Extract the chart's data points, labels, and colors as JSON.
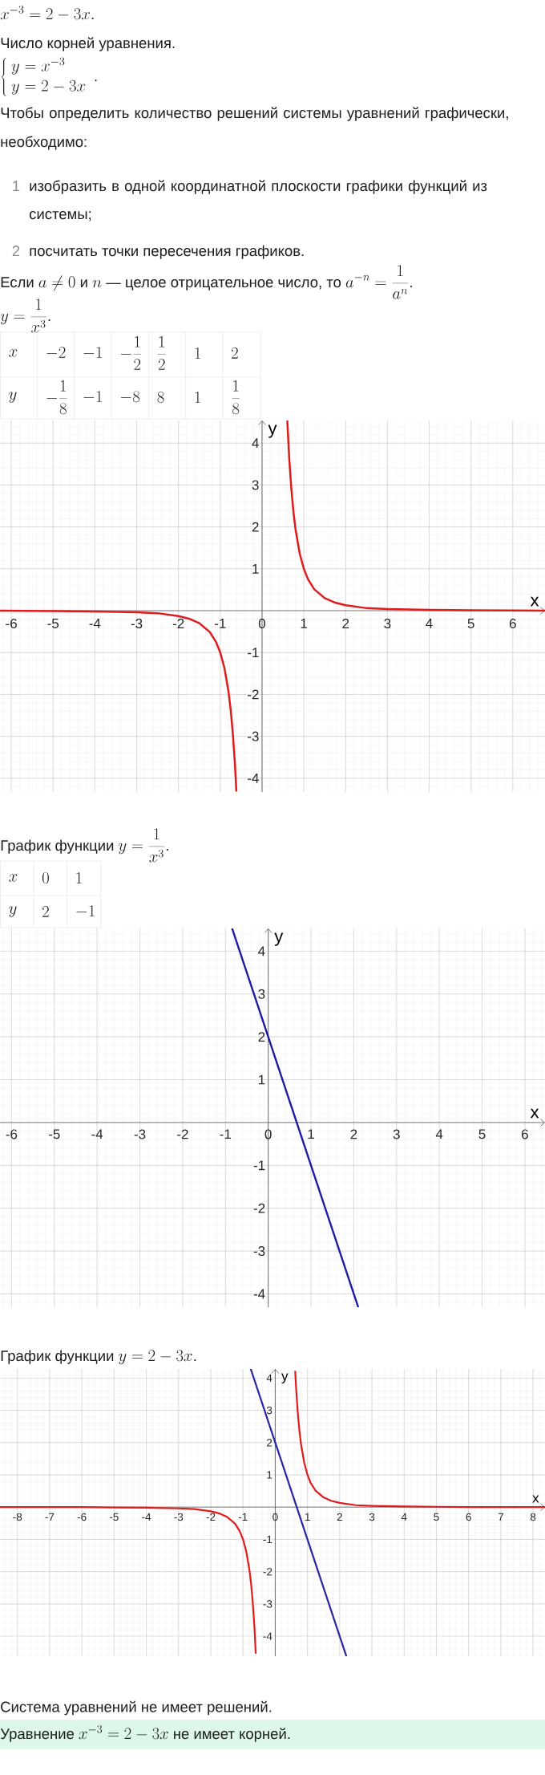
{
  "chart_data": [
    {
      "type": "line",
      "xlabel": "x",
      "ylabel": "y",
      "xlim": [
        -6.27,
        6.77
      ],
      "ylim": [
        -4.33,
        4.54
      ],
      "xticks": [
        -6,
        -5,
        -4,
        -3,
        -2,
        -1,
        0,
        1,
        2,
        3,
        4,
        5,
        6
      ],
      "yticks": [
        -4,
        -3,
        -2,
        -1,
        1,
        2,
        3,
        4
      ],
      "grid": true,
      "series": [
        {
          "color": "#e01b1b",
          "x": [
            -6.27,
            -5,
            -4,
            -3,
            -2.5,
            -2,
            -1.75,
            -1.5,
            -1.25,
            -1.1,
            -1,
            -0.9,
            -0.8,
            -0.75,
            -0.7,
            -0.65,
            -0.615,
            0,
            0.605,
            0.65,
            0.7,
            0.75,
            0.8,
            0.9,
            1,
            1.1,
            1.25,
            1.5,
            1.75,
            2,
            2.5,
            3,
            4,
            5,
            6.77
          ],
          "values": [
            0,
            -0.01,
            -0.02,
            -0.04,
            -0.06,
            -0.13,
            -0.19,
            -0.3,
            -0.51,
            -0.75,
            -1,
            -1.37,
            -1.95,
            -2.37,
            -2.92,
            -3.64,
            -4.3,
            null,
            4.52,
            3.64,
            2.92,
            2.37,
            1.95,
            1.37,
            1,
            0.75,
            0.51,
            0.3,
            0.19,
            0.13,
            0.06,
            0.04,
            0.02,
            0.01,
            0
          ]
        }
      ],
      "annotations": [
        "x^{-3} = 2 - 3x.",
        "Число корней уравнения.",
        "\\left\\{\\begin{array}{l} y = x^{-3} \\\\ y = 2 - 3x \\end{array}\\right. .",
        "Чтобы определить количество решений системы уравнений графически, необходимо:",
        "1",
        "изобразить в одной координатной плоскости графики функций из системы;",
        "2",
        "посчитать точки пересечения графиков.",
        "Если",
        "a \\neq 0",
        "и",
        "n",
        "— целое отрицательное число, то",
        "a^{-n} = \\frac{1}{a^{n}}.",
        "y = \\frac{1}{x^{3}}.",
        "x",
        "-2",
        "-1",
        "-\\frac{1}{2}",
        "\\frac{1}{2}",
        "1",
        "2",
        "y",
        "-\\frac{1}{8}",
        "-1",
        "-8",
        "8",
        "1",
        "\\frac{1}{8}",
        "График функции",
        "y = \\frac{1}{x^{3}}."
      ]
    },
    {
      "type": "line",
      "xlabel": "x",
      "ylabel": "y",
      "xlim": [
        -6.27,
        6.47
      ],
      "ylim": [
        -4.31,
        4.53
      ],
      "xticks": [
        -6,
        -5,
        -4,
        -3,
        -2,
        -1,
        0,
        1,
        2,
        3,
        4,
        5,
        6
      ],
      "yticks": [
        -4,
        -3,
        -2,
        -1,
        1,
        2,
        3,
        4
      ],
      "grid": true,
      "series": [
        {
          "color": "#1c1ca6",
          "x": [
            -0.84,
            0,
            1,
            2.1
          ],
          "values": [
            4.52,
            2,
            -1,
            -4.3
          ]
        }
      ],
      "annotations": [
        "x",
        "0",
        "1",
        "y",
        "2",
        "-1",
        "График функции",
        "y = 2 - 3x."
      ]
    },
    {
      "type": "line",
      "xlabel": "x",
      "ylabel": "y",
      "xlim": [
        -8.54,
        8.37
      ],
      "ylim": [
        -4.62,
        4.28
      ],
      "xticks": [
        -8,
        -7,
        -6,
        -5,
        -4,
        -3,
        -2,
        -1,
        0,
        1,
        2,
        3,
        4,
        5,
        6,
        7,
        8
      ],
      "yticks": [
        -4,
        -3,
        -2,
        -1,
        1,
        2,
        3,
        4
      ],
      "grid": true,
      "series": [
        {
          "color": "#e01b1b",
          "x": [
            -8.54,
            -6,
            -5,
            -4,
            -3,
            -2.5,
            -2,
            -1.75,
            -1.5,
            -1.25,
            -1.1,
            -1,
            -0.9,
            -0.8,
            -0.75,
            -0.7,
            -0.65,
            -0.605,
            0,
            0.62,
            0.65,
            0.7,
            0.75,
            0.8,
            0.9,
            1,
            1.1,
            1.25,
            1.5,
            1.75,
            2,
            2.5,
            3,
            4,
            5,
            6,
            8.37
          ],
          "values": [
            0,
            0,
            -0.01,
            -0.02,
            -0.04,
            -0.06,
            -0.13,
            -0.19,
            -0.3,
            -0.51,
            -0.75,
            -1,
            -1.37,
            -1.95,
            -2.37,
            -2.92,
            -3.64,
            -4.52,
            null,
            4.2,
            3.64,
            2.92,
            2.37,
            1.95,
            1.37,
            1,
            0.75,
            0.51,
            0.3,
            0.19,
            0.13,
            0.06,
            0.04,
            0.02,
            0.01,
            0,
            0
          ]
        },
        {
          "color": "#2626a0",
          "x": [
            -0.76,
            0,
            1,
            2.2
          ],
          "values": [
            4.28,
            2,
            -1,
            -4.6
          ]
        }
      ],
      "annotations": [
        "Система уравнений не имеет решений.",
        "Уравнение",
        "x^{-3} = 2 - 3x",
        "не имеет корней."
      ]
    }
  ]
}
